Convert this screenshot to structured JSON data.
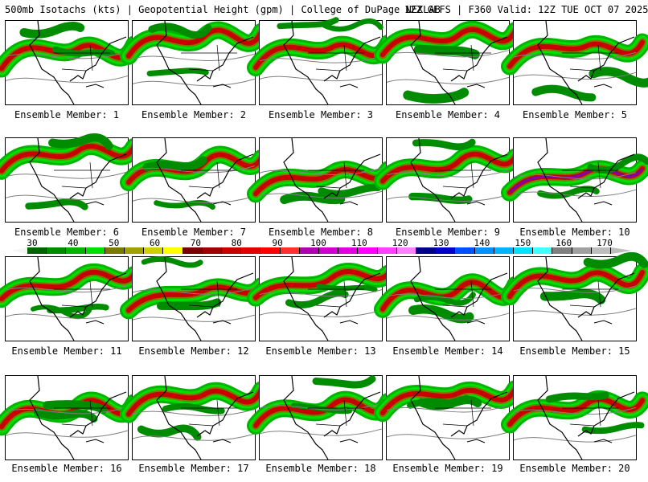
{
  "header": {
    "title": "500mb Isotachs (kts) | Geopotential Height (gpm) | College of DuPage NEXLAB",
    "run_info": "12Z GEFS | F360 Valid: 12Z TUE OCT 07 2025"
  },
  "panel_label_prefix": "Ensemble Member: ",
  "members": [
    "1",
    "2",
    "3",
    "4",
    "5",
    "6",
    "7",
    "8",
    "9",
    "10",
    "11",
    "12",
    "13",
    "14",
    "15",
    "16",
    "17",
    "18",
    "19",
    "20"
  ],
  "colorbar": {
    "ticks": [
      "30",
      "40",
      "50",
      "60",
      "70",
      "80",
      "90",
      "100",
      "110",
      "120",
      "130",
      "140",
      "150",
      "160",
      "170"
    ],
    "colors": [
      "#006400",
      "#008c00",
      "#00b400",
      "#00e000",
      "#7a7a00",
      "#a0a000",
      "#d0d000",
      "#ffff00",
      "#7a0000",
      "#a00000",
      "#c80000",
      "#e00000",
      "#ff0000",
      "#ff3030",
      "#b000b0",
      "#d000d0",
      "#e000e0",
      "#ff00ff",
      "#ff40ff",
      "#ff80ff",
      "#00008c",
      "#0000c8",
      "#0050ff",
      "#0090ff",
      "#00b4ff",
      "#00e0ff",
      "#40ffff",
      "#808080",
      "#a0a0a0",
      "#bdbdbd"
    ]
  }
}
